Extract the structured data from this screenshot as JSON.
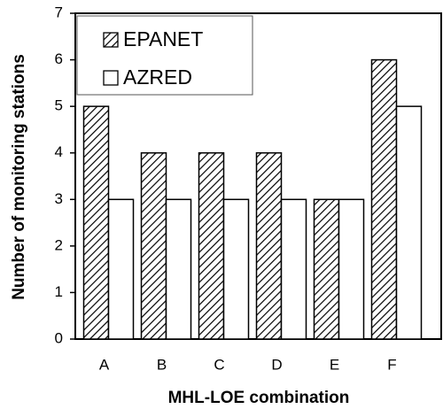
{
  "chart_data": {
    "type": "bar",
    "categories": [
      "A",
      "B",
      "C",
      "D",
      "E",
      "F"
    ],
    "series": [
      {
        "name": "EPANET",
        "color": "#000000",
        "hatch": true,
        "values": [
          5,
          4,
          4,
          4,
          3,
          6
        ]
      },
      {
        "name": "AZRED",
        "color": "#000000",
        "hatch": false,
        "values": [
          3,
          3,
          3,
          3,
          3,
          5
        ]
      }
    ],
    "x_label": "MHL-LOE combination",
    "y_label": "Number of monitoring stations",
    "ylim": [
      0,
      7
    ],
    "yticks": [
      0,
      1,
      2,
      3,
      4,
      5,
      6,
      7
    ],
    "grid": false,
    "legend": "upper left"
  }
}
